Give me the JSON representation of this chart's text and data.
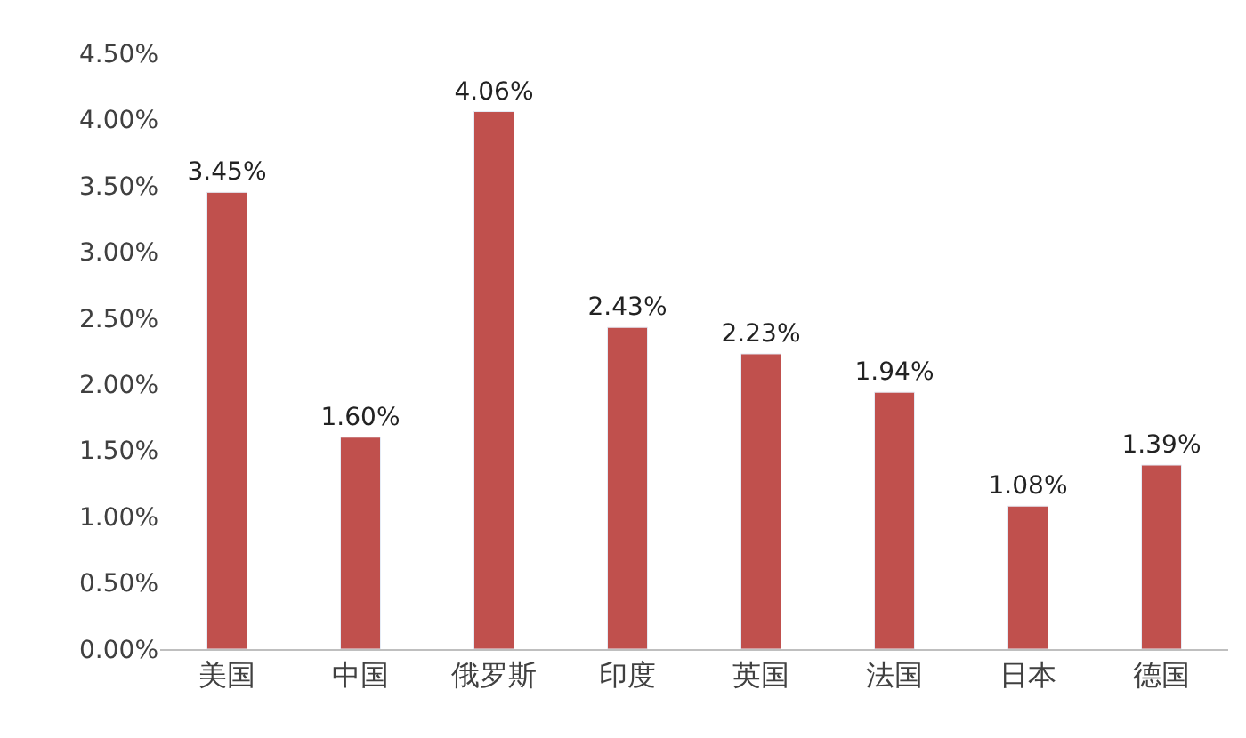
{
  "chart_data": {
    "type": "bar",
    "categories": [
      "美国",
      "中国",
      "俄罗斯",
      "印度",
      "英国",
      "法国",
      "日本",
      "德国"
    ],
    "values": [
      3.45,
      1.6,
      4.06,
      2.43,
      2.23,
      1.94,
      1.08,
      1.39
    ],
    "value_labels": [
      "3.45%",
      "1.60%",
      "4.06%",
      "2.43%",
      "2.23%",
      "1.94%",
      "1.08%",
      "1.39%"
    ],
    "color": "#c0504d",
    "ylim": [
      0,
      4.5
    ],
    "yticks": [
      {
        "value": 0,
        "label": "0.00%"
      },
      {
        "value": 0.5,
        "label": "0.50%"
      },
      {
        "value": 1,
        "label": "1.00%"
      },
      {
        "value": 1.5,
        "label": "1.50%"
      },
      {
        "value": 2,
        "label": "2.00%"
      },
      {
        "value": 2.5,
        "label": "2.50%"
      },
      {
        "value": 3,
        "label": "3.00%"
      },
      {
        "value": 3.5,
        "label": "3.50%"
      },
      {
        "value": 4,
        "label": "4.00%"
      },
      {
        "value": 4.5,
        "label": "4.50%"
      }
    ],
    "legend": false
  }
}
